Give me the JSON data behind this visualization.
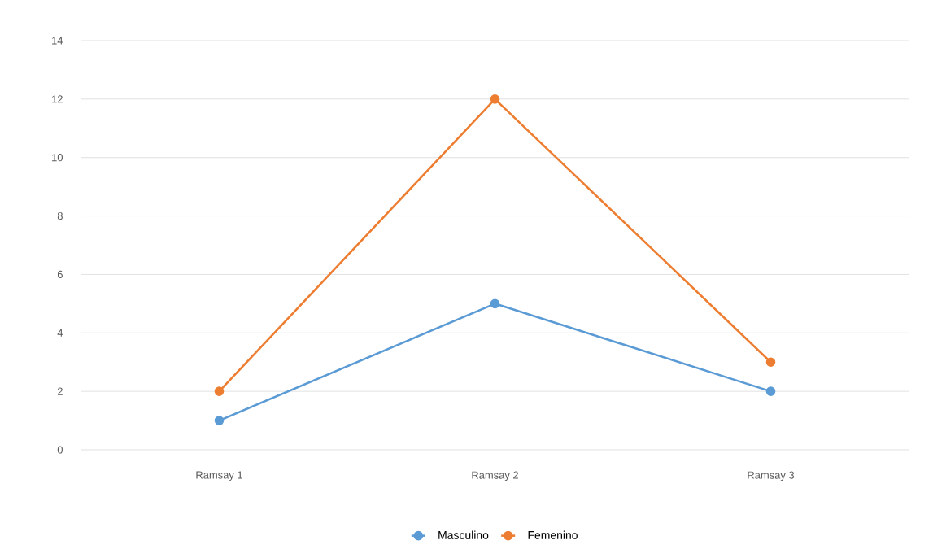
{
  "chart_data": {
    "type": "line",
    "categories": [
      "Ramsay 1",
      "Ramsay 2",
      "Ramsay 3"
    ],
    "series": [
      {
        "name": "Masculino",
        "color": "#5b9bd5",
        "values": [
          1,
          5,
          2
        ]
      },
      {
        "name": "Femenino",
        "color": "#ed7d31",
        "values": [
          2,
          12,
          3
        ]
      }
    ],
    "ylim": [
      0,
      14
    ],
    "yticks": [
      0,
      2,
      4,
      6,
      8,
      10,
      12,
      14
    ],
    "grid": "y",
    "legend": "bottom",
    "marker": "circle",
    "line_style": "solid"
  }
}
